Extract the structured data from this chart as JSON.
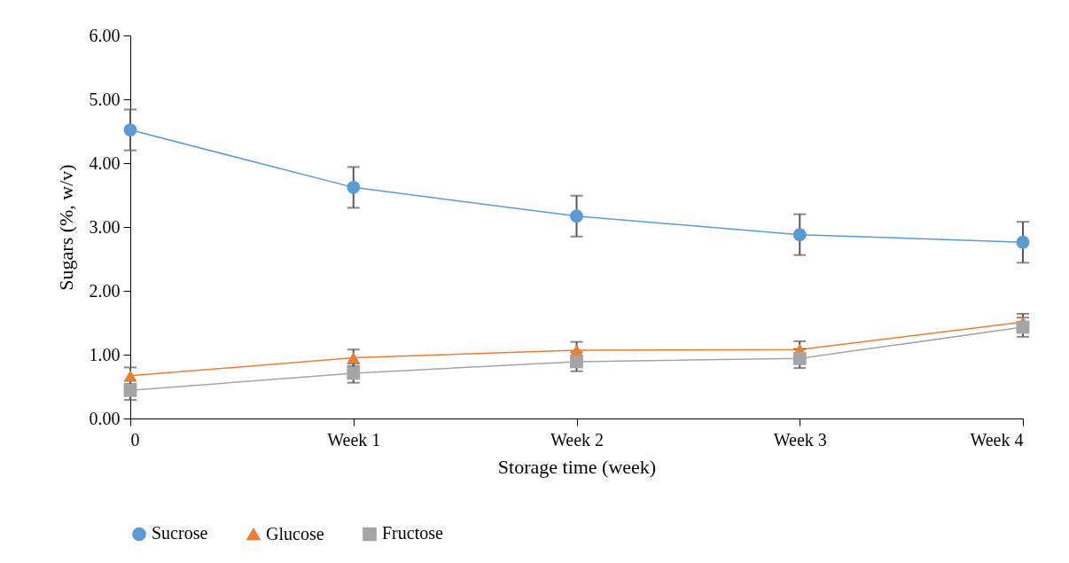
{
  "chart_data": {
    "type": "line",
    "xlabel": "Storage time (week)",
    "ylabel": "Sugars (%, w/v)",
    "categories": [
      "0",
      "Week 1",
      "Week 2",
      "Week 3",
      "Week 4"
    ],
    "series": [
      {
        "name": "Sucrose",
        "color": "#5b9bd5",
        "marker": "circle",
        "values": [
          4.52,
          3.62,
          3.17,
          2.88,
          2.76
        ],
        "errors": [
          0.32,
          0.32,
          0.32,
          0.32,
          0.32
        ]
      },
      {
        "name": "Glucose",
        "color": "#ed7d31",
        "marker": "triangle",
        "values": [
          0.67,
          0.95,
          1.07,
          1.08,
          1.51
        ],
        "errors": [
          0.13,
          0.13,
          0.13,
          0.13,
          0.13
        ]
      },
      {
        "name": "Fructose",
        "color": "#a5a5a5",
        "marker": "square",
        "values": [
          0.44,
          0.71,
          0.89,
          0.94,
          1.43
        ],
        "errors": [
          0.15,
          0.15,
          0.15,
          0.15,
          0.15
        ]
      }
    ],
    "ylim": [
      0,
      6
    ],
    "yticks": [
      {
        "value": 0,
        "label": "0.00"
      },
      {
        "value": 1,
        "label": "1.00"
      },
      {
        "value": 2,
        "label": "2.00"
      },
      {
        "value": 3,
        "label": "3.00"
      },
      {
        "value": 4,
        "label": "4.00"
      },
      {
        "value": 5,
        "label": "5.00"
      },
      {
        "value": 6,
        "label": "6.00"
      }
    ],
    "grid": false,
    "legend": "bottom",
    "line_style": "solid"
  }
}
